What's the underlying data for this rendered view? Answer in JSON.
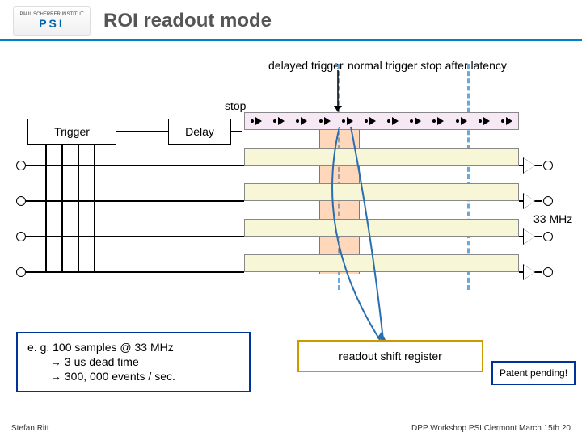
{
  "header": {
    "logo_top": "PAUL SCHERRER INSTITUT",
    "logo_main": "PSI",
    "title": "ROI readout mode"
  },
  "annotations": {
    "delayed_trigger": "delayed trigger",
    "normal_stop": "normal trigger stop after latency",
    "stop": "stop"
  },
  "blocks": {
    "trigger": "Trigger",
    "delay": "Delay"
  },
  "mhz_label": "33 MHz",
  "notes": {
    "dead_time_l1": "e. g. 100 samples @ 33 MHz",
    "dead_time_l2": "→ 3 us dead time",
    "dead_time_l3": "→ 300, 000 events / sec.",
    "readout": "readout shift register",
    "patent": "Patent pending!"
  },
  "footer": {
    "left": "Stefan Ritt",
    "right": "DPP Workshop PSI Clermont March 15th 20"
  },
  "diagram_style": {
    "lane_colors": {
      "domino": "#f7e8f5",
      "shift": "#f7f7d8"
    },
    "dash_color": "#6aa8d8",
    "roi_color": "rgba(255,140,60,0.35)",
    "note1_border": "#003399",
    "note2_border": "#cc9900",
    "n_cells": 12,
    "n_shift_lanes": 4
  }
}
